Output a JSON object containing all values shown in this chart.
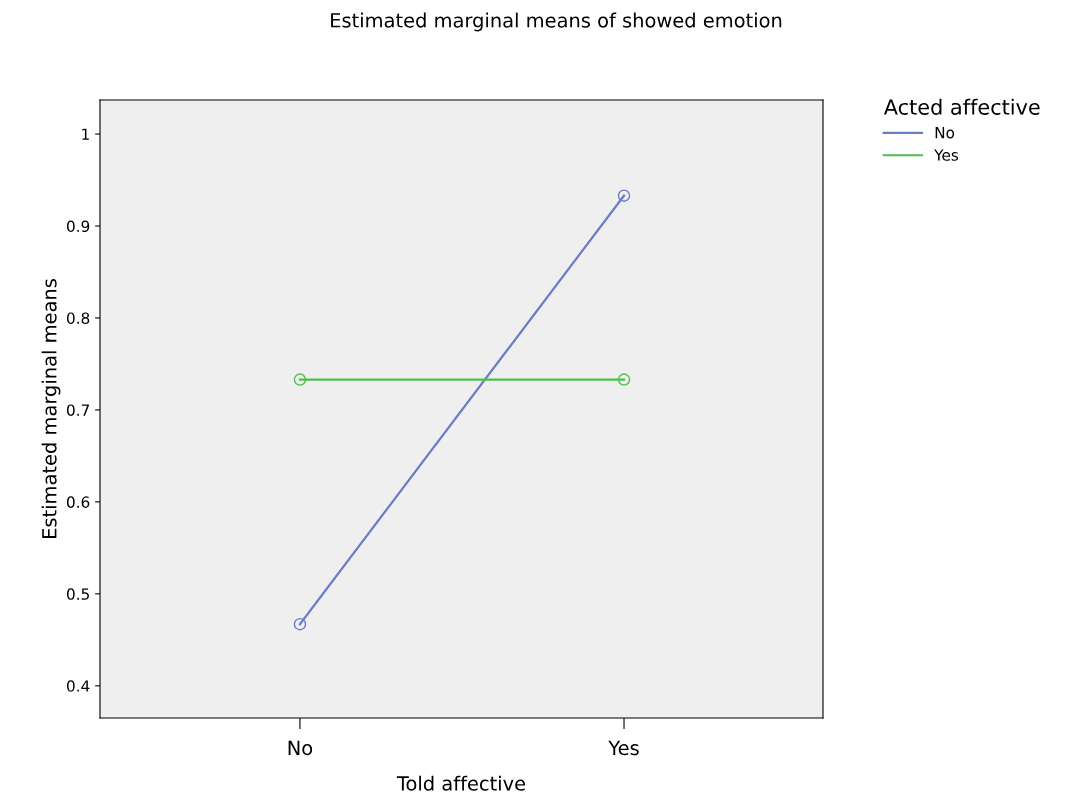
{
  "chart_data": {
    "type": "line",
    "title": "Estimated marginal means of showed emotion",
    "xlabel": "Told affective",
    "ylabel": "Estimated marginal means",
    "legend_title": "Acted affective",
    "categories": [
      "No",
      "Yes"
    ],
    "series": [
      {
        "name": "No",
        "color": "#6a7cc6",
        "values": [
          0.467,
          0.933
        ]
      },
      {
        "name": "Yes",
        "color": "#4cbf4c",
        "values": [
          0.733,
          0.733
        ]
      }
    ],
    "ylim": [
      0.365,
      1.037
    ],
    "yticks": [
      0.4,
      0.5,
      0.6,
      0.7,
      0.8,
      0.9,
      1
    ],
    "grid": false,
    "legend": "right",
    "marker": "circle",
    "line_style": "solid"
  }
}
